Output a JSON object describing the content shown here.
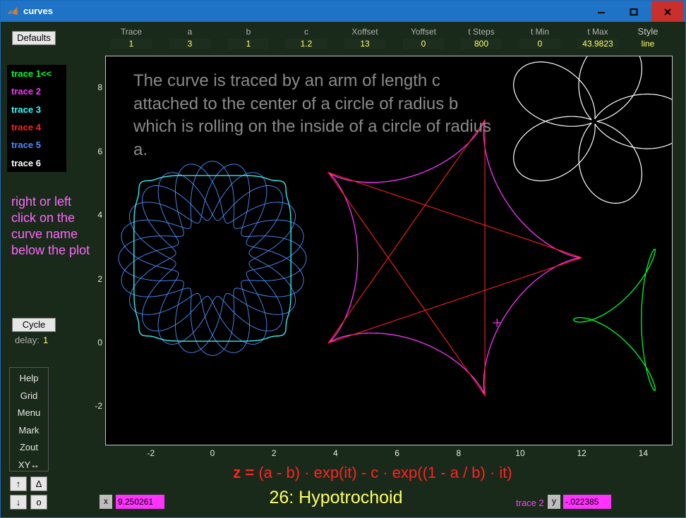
{
  "window": {
    "title": "curves",
    "minimize_icon": "minimize-icon",
    "maximize_icon": "maximize-icon",
    "close_icon": "close-icon"
  },
  "buttons": {
    "defaults": "Defaults",
    "cycle": "Cycle"
  },
  "delay": {
    "label": "delay:",
    "value": "1"
  },
  "params": [
    {
      "label": "Trace",
      "value": "1"
    },
    {
      "label": "a",
      "value": "3"
    },
    {
      "label": "b",
      "value": "1"
    },
    {
      "label": "c",
      "value": "1.2"
    },
    {
      "label": "Xoffset",
      "value": "13"
    },
    {
      "label": "Yoffset",
      "value": "0"
    },
    {
      "label": "t Steps",
      "value": "800"
    },
    {
      "label": "t Min",
      "value": "0"
    },
    {
      "label": "t Max",
      "value": "43.9823"
    },
    {
      "label": "Style",
      "value": "line"
    }
  ],
  "traces": [
    {
      "label": "trace 1<<",
      "color": "#00ff33"
    },
    {
      "label": "trace 2",
      "color": "#ff33ff"
    },
    {
      "label": "trace 3",
      "color": "#33ffff"
    },
    {
      "label": "trace 4",
      "color": "#ff2020"
    },
    {
      "label": "trace 5",
      "color": "#4a90ff"
    },
    {
      "label": "trace 6",
      "color": "#ffffff"
    }
  ],
  "hint": "right or left click on the curve name below the plot",
  "menu": [
    "Help",
    "Grid",
    "Menu",
    "Mark",
    "Zout",
    "XY↔"
  ],
  "arrows": [
    "↑",
    "Δ",
    "↓",
    "o"
  ],
  "description": "The curve is traced by an arm of length c attached to the center of a circle of radius b which is rolling on the inside of a circle of radius a.",
  "formula": {
    "lhs": "z =",
    "rhs": "(a - b) · exp(it) - c · exp((1 - a / b) · it)"
  },
  "curve_name": "26: Hypotrochoid",
  "cursor": {
    "x_label": "x",
    "x_value": "9.250261",
    "trace_label": "trace 2",
    "y_label": "y",
    "y_value": "-.022385"
  },
  "axes": {
    "x_ticks": [
      "-2",
      "0",
      "2",
      "4",
      "6",
      "8",
      "10",
      "12",
      "14"
    ],
    "y_ticks": [
      "8",
      "6",
      "4",
      "2",
      "0",
      "-2"
    ]
  }
}
